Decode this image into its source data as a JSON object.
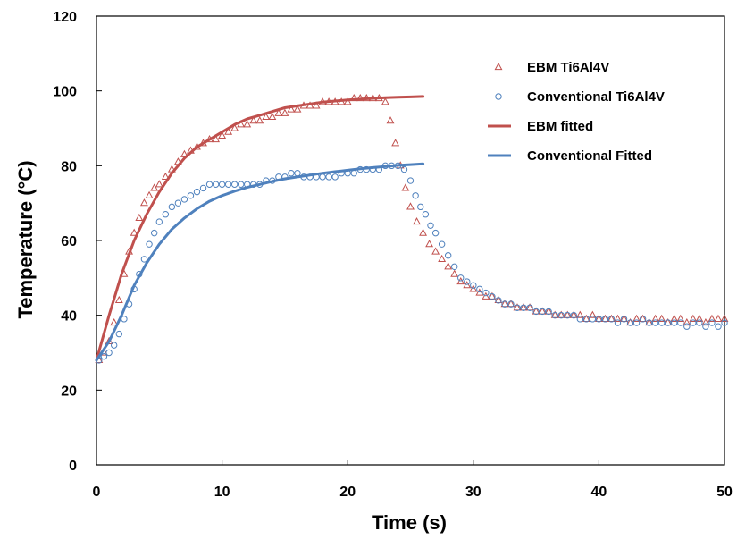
{
  "chart_data": {
    "type": "scatter",
    "title": "",
    "xlabel": "Time (s)",
    "ylabel": "Temperature (°C)",
    "xlim": [
      0,
      50
    ],
    "ylim": [
      0,
      120
    ],
    "x_ticks": [
      0,
      10,
      20,
      30,
      40,
      50
    ],
    "y_ticks": [
      0,
      20,
      40,
      60,
      80,
      100,
      120
    ],
    "x_tick_labels": [
      "0",
      "10",
      "20",
      "30",
      "40",
      "50"
    ],
    "y_tick_labels": [
      "0",
      "20",
      "40",
      "60",
      "80",
      "100",
      "120"
    ],
    "grid": false,
    "legend_position": "top-right",
    "colors": {
      "ebm": "#c0504d",
      "conventional": "#4f81bd"
    },
    "series": [
      {
        "name": "EBM Ti6Al4V",
        "kind": "scatter",
        "marker": "triangle",
        "color": "#c0504d",
        "points": [
          [
            0.2,
            28
          ],
          [
            0.6,
            30
          ],
          [
            1.0,
            33
          ],
          [
            1.4,
            38
          ],
          [
            1.8,
            44
          ],
          [
            2.2,
            51
          ],
          [
            2.6,
            57
          ],
          [
            3.0,
            62
          ],
          [
            3.4,
            66
          ],
          [
            3.8,
            70
          ],
          [
            4.2,
            72
          ],
          [
            4.6,
            74
          ],
          [
            5.0,
            75
          ],
          [
            5.5,
            77
          ],
          [
            6.0,
            79
          ],
          [
            6.5,
            81
          ],
          [
            7.0,
            83
          ],
          [
            7.5,
            84
          ],
          [
            8.0,
            85
          ],
          [
            8.5,
            86
          ],
          [
            9.0,
            87
          ],
          [
            9.5,
            87
          ],
          [
            10.0,
            88
          ],
          [
            10.5,
            89
          ],
          [
            11.0,
            90
          ],
          [
            11.5,
            91
          ],
          [
            12.0,
            91
          ],
          [
            12.5,
            92
          ],
          [
            13.0,
            92
          ],
          [
            13.5,
            93
          ],
          [
            14.0,
            93
          ],
          [
            14.5,
            94
          ],
          [
            15.0,
            94
          ],
          [
            15.5,
            95
          ],
          [
            16.0,
            95
          ],
          [
            16.5,
            96
          ],
          [
            17.0,
            96
          ],
          [
            17.5,
            96
          ],
          [
            18.0,
            97
          ],
          [
            18.5,
            97
          ],
          [
            19.0,
            97
          ],
          [
            19.5,
            97
          ],
          [
            20.0,
            97
          ],
          [
            20.5,
            98
          ],
          [
            21.0,
            98
          ],
          [
            21.5,
            98
          ],
          [
            22.0,
            98
          ],
          [
            22.5,
            98
          ],
          [
            23.0,
            97
          ],
          [
            23.4,
            92
          ],
          [
            23.8,
            86
          ],
          [
            24.2,
            80
          ],
          [
            24.6,
            74
          ],
          [
            25.0,
            69
          ],
          [
            25.5,
            65
          ],
          [
            26.0,
            62
          ],
          [
            26.5,
            59
          ],
          [
            27.0,
            57
          ],
          [
            27.5,
            55
          ],
          [
            28.0,
            53
          ],
          [
            28.5,
            51
          ],
          [
            29.0,
            49
          ],
          [
            29.5,
            48
          ],
          [
            30.0,
            47
          ],
          [
            30.5,
            46
          ],
          [
            31.0,
            45
          ],
          [
            31.5,
            45
          ],
          [
            32.0,
            44
          ],
          [
            32.5,
            43
          ],
          [
            33.0,
            43
          ],
          [
            33.5,
            42
          ],
          [
            34.0,
            42
          ],
          [
            34.5,
            42
          ],
          [
            35.0,
            41
          ],
          [
            35.5,
            41
          ],
          [
            36.0,
            41
          ],
          [
            36.5,
            40
          ],
          [
            37.0,
            40
          ],
          [
            37.5,
            40
          ],
          [
            38.0,
            40
          ],
          [
            38.5,
            40
          ],
          [
            39.0,
            39
          ],
          [
            39.5,
            40
          ],
          [
            40.0,
            39
          ],
          [
            40.5,
            39
          ],
          [
            41.0,
            39
          ],
          [
            41.5,
            39
          ],
          [
            42.0,
            39
          ],
          [
            42.5,
            38
          ],
          [
            43.0,
            39
          ],
          [
            43.5,
            39
          ],
          [
            44.0,
            38
          ],
          [
            44.5,
            39
          ],
          [
            45.0,
            39
          ],
          [
            45.5,
            38
          ],
          [
            46.0,
            39
          ],
          [
            46.5,
            39
          ],
          [
            47.0,
            38
          ],
          [
            47.5,
            39
          ],
          [
            48.0,
            39
          ],
          [
            48.5,
            38
          ],
          [
            49.0,
            39
          ],
          [
            49.5,
            39
          ],
          [
            50.0,
            39
          ]
        ]
      },
      {
        "name": "Conventional Ti6Al4V",
        "kind": "scatter",
        "marker": "circle",
        "color": "#4f81bd",
        "points": [
          [
            0.2,
            28
          ],
          [
            0.6,
            29
          ],
          [
            1.0,
            30
          ],
          [
            1.4,
            32
          ],
          [
            1.8,
            35
          ],
          [
            2.2,
            39
          ],
          [
            2.6,
            43
          ],
          [
            3.0,
            47
          ],
          [
            3.4,
            51
          ],
          [
            3.8,
            55
          ],
          [
            4.2,
            59
          ],
          [
            4.6,
            62
          ],
          [
            5.0,
            65
          ],
          [
            5.5,
            67
          ],
          [
            6.0,
            69
          ],
          [
            6.5,
            70
          ],
          [
            7.0,
            71
          ],
          [
            7.5,
            72
          ],
          [
            8.0,
            73
          ],
          [
            8.5,
            74
          ],
          [
            9.0,
            75
          ],
          [
            9.5,
            75
          ],
          [
            10.0,
            75
          ],
          [
            10.5,
            75
          ],
          [
            11.0,
            75
          ],
          [
            11.5,
            75
          ],
          [
            12.0,
            75
          ],
          [
            12.5,
            75
          ],
          [
            13.0,
            75
          ],
          [
            13.5,
            76
          ],
          [
            14.0,
            76
          ],
          [
            14.5,
            77
          ],
          [
            15.0,
            77
          ],
          [
            15.5,
            78
          ],
          [
            16.0,
            78
          ],
          [
            16.5,
            77
          ],
          [
            17.0,
            77
          ],
          [
            17.5,
            77
          ],
          [
            18.0,
            77
          ],
          [
            18.5,
            77
          ],
          [
            19.0,
            77
          ],
          [
            19.5,
            78
          ],
          [
            20.0,
            78
          ],
          [
            20.5,
            78
          ],
          [
            21.0,
            79
          ],
          [
            21.5,
            79
          ],
          [
            22.0,
            79
          ],
          [
            22.5,
            79
          ],
          [
            23.0,
            80
          ],
          [
            23.5,
            80
          ],
          [
            24.0,
            80
          ],
          [
            24.5,
            79
          ],
          [
            25.0,
            76
          ],
          [
            25.4,
            72
          ],
          [
            25.8,
            69
          ],
          [
            26.2,
            67
          ],
          [
            26.6,
            64
          ],
          [
            27.0,
            62
          ],
          [
            27.5,
            59
          ],
          [
            28.0,
            56
          ],
          [
            28.5,
            53
          ],
          [
            29.0,
            50
          ],
          [
            29.5,
            49
          ],
          [
            30.0,
            48
          ],
          [
            30.5,
            47
          ],
          [
            31.0,
            46
          ],
          [
            31.5,
            45
          ],
          [
            32.0,
            44
          ],
          [
            32.5,
            43
          ],
          [
            33.0,
            43
          ],
          [
            33.5,
            42
          ],
          [
            34.0,
            42
          ],
          [
            34.5,
            42
          ],
          [
            35.0,
            41
          ],
          [
            35.5,
            41
          ],
          [
            36.0,
            41
          ],
          [
            36.5,
            40
          ],
          [
            37.0,
            40
          ],
          [
            37.5,
            40
          ],
          [
            38.0,
            40
          ],
          [
            38.5,
            39
          ],
          [
            39.0,
            39
          ],
          [
            39.5,
            39
          ],
          [
            40.0,
            39
          ],
          [
            40.5,
            39
          ],
          [
            41.0,
            39
          ],
          [
            41.5,
            38
          ],
          [
            42.0,
            39
          ],
          [
            42.5,
            38
          ],
          [
            43.0,
            38
          ],
          [
            43.5,
            39
          ],
          [
            44.0,
            38
          ],
          [
            44.5,
            38
          ],
          [
            45.0,
            38
          ],
          [
            45.5,
            38
          ],
          [
            46.0,
            38
          ],
          [
            46.5,
            38
          ],
          [
            47.0,
            37
          ],
          [
            47.5,
            38
          ],
          [
            48.0,
            38
          ],
          [
            48.5,
            37
          ],
          [
            49.0,
            38
          ],
          [
            49.5,
            37
          ],
          [
            50.0,
            38
          ]
        ]
      },
      {
        "name": "EBM fitted",
        "kind": "line",
        "color": "#c0504d",
        "points": [
          [
            0,
            28
          ],
          [
            1,
            40
          ],
          [
            2,
            51
          ],
          [
            3,
            60
          ],
          [
            4,
            67
          ],
          [
            5,
            73
          ],
          [
            6,
            78
          ],
          [
            7,
            82
          ],
          [
            8,
            85
          ],
          [
            9,
            87
          ],
          [
            10,
            89
          ],
          [
            11,
            91
          ],
          [
            12,
            92.5
          ],
          [
            13,
            93.5
          ],
          [
            14,
            94.5
          ],
          [
            15,
            95.5
          ],
          [
            16,
            96
          ],
          [
            17,
            96.5
          ],
          [
            18,
            97
          ],
          [
            19,
            97.3
          ],
          [
            20,
            97.6
          ],
          [
            21,
            97.8
          ],
          [
            22,
            98
          ],
          [
            23,
            98.2
          ],
          [
            24,
            98.3
          ],
          [
            25,
            98.4
          ],
          [
            26,
            98.5
          ]
        ]
      },
      {
        "name": "Conventional Fitted",
        "kind": "line",
        "color": "#4f81bd",
        "points": [
          [
            0,
            28
          ],
          [
            1,
            33
          ],
          [
            2,
            40
          ],
          [
            3,
            48
          ],
          [
            4,
            54
          ],
          [
            5,
            59
          ],
          [
            6,
            63
          ],
          [
            7,
            66
          ],
          [
            8,
            68.5
          ],
          [
            9,
            70.5
          ],
          [
            10,
            72
          ],
          [
            11,
            73.2
          ],
          [
            12,
            74.2
          ],
          [
            13,
            75
          ],
          [
            14,
            75.8
          ],
          [
            15,
            76.5
          ],
          [
            16,
            77
          ],
          [
            17,
            77.5
          ],
          [
            18,
            78
          ],
          [
            19,
            78.4
          ],
          [
            20,
            78.8
          ],
          [
            21,
            79.2
          ],
          [
            22,
            79.5
          ],
          [
            23,
            79.8
          ],
          [
            24,
            80.1
          ],
          [
            25,
            80.3
          ],
          [
            26,
            80.5
          ]
        ]
      }
    ]
  }
}
